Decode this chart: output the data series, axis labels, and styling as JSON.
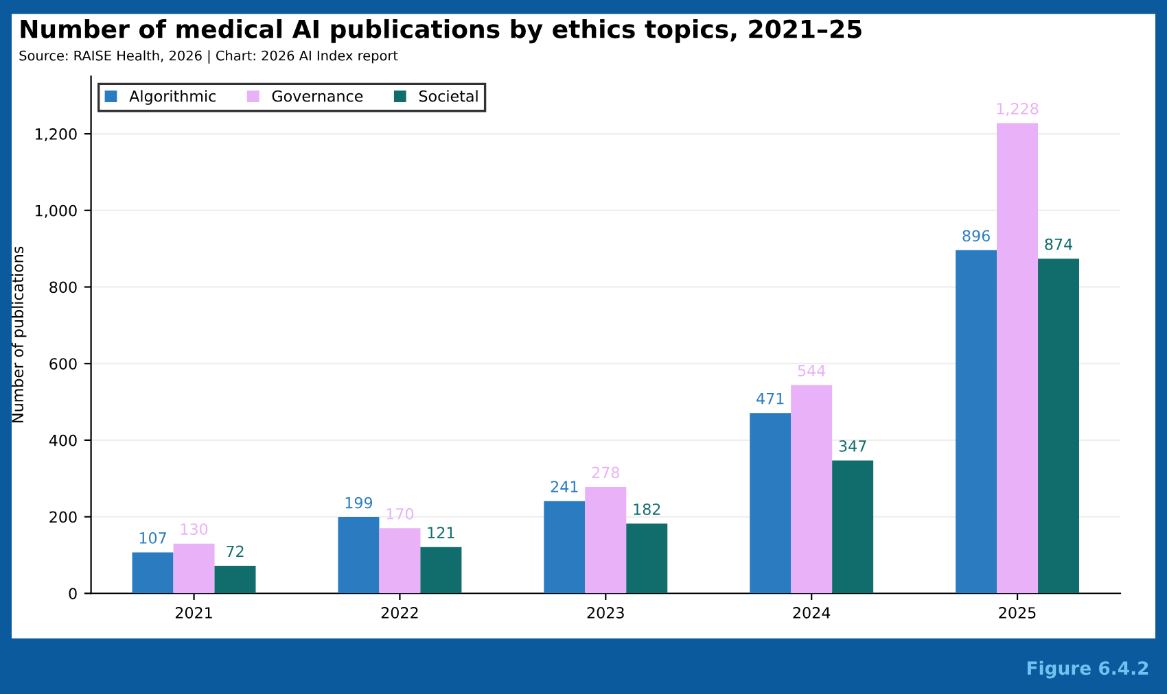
{
  "chart_data": {
    "type": "bar",
    "title": "Number of medical AI publications by ethics topics, 2021–25",
    "subtitle": "Source: RAISE Health, 2026 | Chart: 2026 AI Index report",
    "ylabel": "Number of publications",
    "annotations": [
      "Figure 6.4.2"
    ],
    "categories": [
      "2021",
      "2022",
      "2023",
      "2024",
      "2025"
    ],
    "series": [
      {
        "name": "Algorithmic",
        "color": "#2b7bc1",
        "values": [
          107,
          199,
          241,
          471,
          896
        ],
        "value_labels": [
          "107",
          "199",
          "241",
          "471",
          "896"
        ]
      },
      {
        "name": "Governance",
        "color": "#e9b1f7",
        "values": [
          130,
          170,
          278,
          544,
          1228
        ],
        "value_labels": [
          "130",
          "170",
          "278",
          "544",
          "1,228"
        ]
      },
      {
        "name": "Societal",
        "color": "#116d6b",
        "values": [
          72,
          121,
          182,
          347,
          874
        ],
        "value_labels": [
          "72",
          "121",
          "182",
          "347",
          "874"
        ]
      }
    ],
    "ylim": [
      0,
      1350
    ],
    "yticks": [
      0,
      200,
      400,
      600,
      800,
      {
        "value": 1000,
        "label": "1,000"
      },
      {
        "value": 1200,
        "label": "1,200"
      }
    ],
    "grid": "y",
    "legend": "top left"
  }
}
